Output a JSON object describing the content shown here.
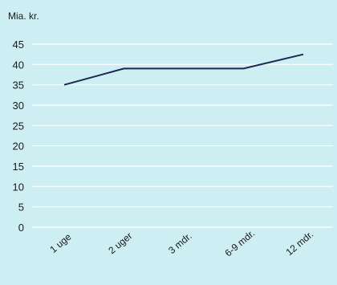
{
  "chart_data": {
    "type": "line",
    "ylabel": "Mia. kr.",
    "ylim": [
      0,
      45
    ],
    "yticks": [
      0,
      5,
      10,
      15,
      20,
      25,
      30,
      35,
      40,
      45
    ],
    "categories": [
      "1 uge",
      "2 uger",
      "3 mdr.",
      "6-9 mdr.",
      "12 mdr."
    ],
    "series": [
      {
        "values": [
          35,
          39,
          39,
          39,
          42.5
        ]
      }
    ],
    "grid": true,
    "colors": {
      "background": "#cdeef2",
      "grid": "#ffffff",
      "line": "#1b2a55"
    }
  }
}
